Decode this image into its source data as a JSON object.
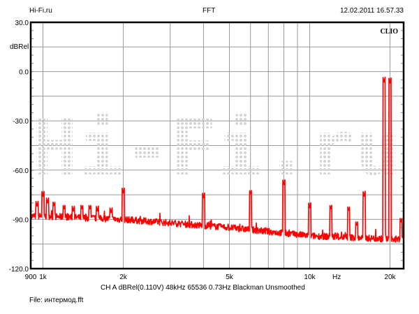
{
  "header": {
    "left": "Hi-Fi.ru",
    "center": "FFT",
    "right": "12.02.2011 16.57.33"
  },
  "brand": "CLIO",
  "watermark": "Hi-Fi.ru",
  "footer": {
    "settings": "CH A   dBRel(0.110V)   48kHz   65536   0.73Hz   Blackman   Unsmoothed",
    "file": "File: интермод.fft"
  },
  "chart_data": {
    "type": "line",
    "title": "FFT",
    "xlabel": "Hz",
    "ylabel": "dBRel",
    "xscale": "log",
    "xlim": [
      900,
      22500
    ],
    "ylim": [
      -120,
      30
    ],
    "grid": true,
    "x_ticks": [
      {
        "value": 900,
        "label": "900"
      },
      {
        "value": 1000,
        "label": "1k"
      },
      {
        "value": 2000,
        "label": "2k"
      },
      {
        "value": 5000,
        "label": "5k"
      },
      {
        "value": 10000,
        "label": "10k"
      },
      {
        "value": 20000,
        "label": "20k"
      }
    ],
    "x_grid": [
      1000,
      2000,
      3000,
      4000,
      5000,
      6000,
      7000,
      8000,
      9000,
      10000,
      20000
    ],
    "y_ticks": [
      {
        "value": 30,
        "label": "30.0"
      },
      {
        "value": 0,
        "label": "0.0"
      },
      {
        "value": -30,
        "label": "-30.0"
      },
      {
        "value": -60,
        "label": "-60.0"
      },
      {
        "value": -90,
        "label": "-90.0"
      },
      {
        "value": -120,
        "label": "-120.0"
      }
    ],
    "y_grid_step": 15,
    "color": "#ff0000",
    "noise_floor": [
      [
        900,
        -88
      ],
      [
        1000,
        -88
      ],
      [
        2000,
        -90
      ],
      [
        5000,
        -95
      ],
      [
        10000,
        -100
      ],
      [
        20000,
        -102
      ],
      [
        22500,
        -102
      ]
    ],
    "peaks": [
      {
        "hz": 950,
        "db": -82
      },
      {
        "hz": 1000,
        "db": -76
      },
      {
        "hz": 1040,
        "db": -80
      },
      {
        "hz": 1100,
        "db": -82
      },
      {
        "hz": 1200,
        "db": -84
      },
      {
        "hz": 1300,
        "db": -85
      },
      {
        "hz": 1400,
        "db": -84
      },
      {
        "hz": 1500,
        "db": -84
      },
      {
        "hz": 1600,
        "db": -85
      },
      {
        "hz": 1800,
        "db": -86
      },
      {
        "hz": 2000,
        "db": -74
      },
      {
        "hz": 4000,
        "db": -77
      },
      {
        "hz": 6000,
        "db": -75
      },
      {
        "hz": 8000,
        "db": -69
      },
      {
        "hz": 10000,
        "db": -83
      },
      {
        "hz": 12000,
        "db": -84
      },
      {
        "hz": 14000,
        "db": -85
      },
      {
        "hz": 15000,
        "db": -94
      },
      {
        "hz": 16000,
        "db": -76
      },
      {
        "hz": 19000,
        "db": -6.5
      },
      {
        "hz": 20000,
        "db": -7
      },
      {
        "hz": 22000,
        "db": -92
      }
    ]
  }
}
